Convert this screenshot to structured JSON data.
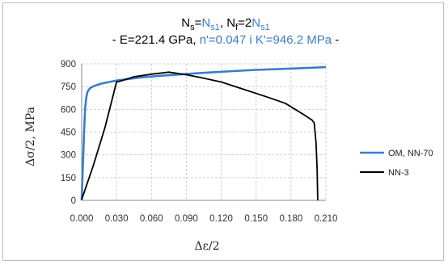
{
  "chart_data": {
    "type": "line",
    "title": {
      "line1": [
        {
          "text": "N",
          "color": "#000000"
        },
        {
          "text": "s",
          "color": "#000000",
          "sub": true
        },
        {
          "text": "=",
          "color": "#000000"
        },
        {
          "text": "N",
          "color": "#3a7dc9"
        },
        {
          "text": "s1",
          "color": "#3a7dc9",
          "sub": true
        },
        {
          "text": ", N",
          "color": "#000000"
        },
        {
          "text": "f",
          "color": "#000000",
          "sub": true
        },
        {
          "text": "=2",
          "color": "#000000"
        },
        {
          "text": "N",
          "color": "#3a7dc9"
        },
        {
          "text": "s1",
          "color": "#3a7dc9",
          "sub": true
        }
      ],
      "line2": [
        {
          "text": "- E=221.4 GPa, ",
          "color": "#000000"
        },
        {
          "text": "n'=0.047 i K'=946.2 MPa",
          "color": "#3a7dc9"
        },
        {
          "text": " -",
          "color": "#000000"
        }
      ]
    },
    "xlabel": "Δε/2",
    "ylabel": "Δσ/2, MPa",
    "xlim": [
      0,
      0.21
    ],
    "ylim": [
      0,
      900
    ],
    "x_ticks": [
      "0.000",
      "0.030",
      "0.060",
      "0.090",
      "0.120",
      "0.150",
      "0.180",
      "0.210"
    ],
    "y_ticks": [
      "0",
      "150",
      "300",
      "450",
      "600",
      "750",
      "900"
    ],
    "grid": true,
    "legend_position": "right",
    "series": [
      {
        "name": "OM, NN-70",
        "color": "#3a7dc9",
        "points": [
          [
            0.0,
            0
          ],
          [
            0.0005,
            110
          ],
          [
            0.001,
            220
          ],
          [
            0.0015,
            330
          ],
          [
            0.002,
            440
          ],
          [
            0.0025,
            530
          ],
          [
            0.003,
            610
          ],
          [
            0.004,
            680
          ],
          [
            0.005,
            715
          ],
          [
            0.007,
            738
          ],
          [
            0.01,
            752
          ],
          [
            0.015,
            765
          ],
          [
            0.02,
            775
          ],
          [
            0.03,
            790
          ],
          [
            0.04,
            800
          ],
          [
            0.05,
            810
          ],
          [
            0.07,
            822
          ],
          [
            0.09,
            833
          ],
          [
            0.11,
            843
          ],
          [
            0.13,
            852
          ],
          [
            0.15,
            860
          ],
          [
            0.17,
            866
          ],
          [
            0.19,
            872
          ],
          [
            0.21,
            878
          ]
        ]
      },
      {
        "name": "NN-3",
        "color": "#000000",
        "points": [
          [
            0.0,
            5
          ],
          [
            0.01,
            230
          ],
          [
            0.02,
            480
          ],
          [
            0.03,
            780
          ],
          [
            0.035,
            790
          ],
          [
            0.045,
            815
          ],
          [
            0.06,
            832
          ],
          [
            0.075,
            845
          ],
          [
            0.09,
            828
          ],
          [
            0.105,
            805
          ],
          [
            0.12,
            780
          ],
          [
            0.14,
            730
          ],
          [
            0.16,
            680
          ],
          [
            0.175,
            640
          ],
          [
            0.19,
            570
          ],
          [
            0.198,
            530
          ],
          [
            0.2,
            510
          ],
          [
            0.2015,
            380
          ],
          [
            0.2025,
            200
          ],
          [
            0.203,
            0
          ]
        ]
      }
    ]
  }
}
